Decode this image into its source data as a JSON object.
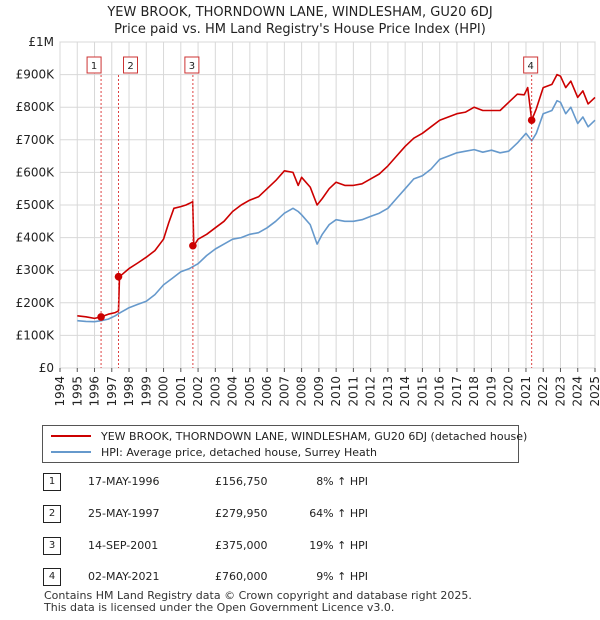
{
  "title_line1": "YEW BROOK, THORNDOWN LANE, WINDLESHAM, GU20 6DJ",
  "title_line2": "Price paid vs. HM Land Registry's House Price Index (HPI)",
  "chart_data": {
    "type": "line",
    "title": "YEW BROOK, THORNDOWN LANE, WINDLESHAM, GU20 6DJ — Price paid vs. HM Land Registry's House Price Index (HPI)",
    "xlabel": "",
    "ylabel": "",
    "xlim": [
      1994.0,
      2025.0
    ],
    "ylim": [
      0,
      1000000
    ],
    "y_ticks": [
      0,
      100000,
      200000,
      300000,
      400000,
      500000,
      600000,
      700000,
      800000,
      900000,
      1000000
    ],
    "y_tick_labels": [
      "£0",
      "£100K",
      "£200K",
      "£300K",
      "£400K",
      "£500K",
      "£600K",
      "£700K",
      "£800K",
      "£900K",
      "£1M"
    ],
    "x_ticks": [
      1994,
      1995,
      1996,
      1997,
      1998,
      1999,
      2000,
      2001,
      2002,
      2003,
      2004,
      2005,
      2006,
      2007,
      2008,
      2009,
      2010,
      2011,
      2012,
      2013,
      2014,
      2015,
      2016,
      2017,
      2018,
      2019,
      2020,
      2021,
      2022,
      2023,
      2024,
      2025
    ],
    "x_tick_labels": [
      "1994",
      "1995",
      "1996",
      "1997",
      "1998",
      "1999",
      "2000",
      "2001",
      "2002",
      "2003",
      "2004",
      "2005",
      "2006",
      "2007",
      "2008",
      "2009",
      "2010",
      "2011",
      "2012",
      "2013",
      "2014",
      "2015",
      "2016",
      "2017",
      "2018",
      "2019",
      "2020",
      "2021",
      "2022",
      "2023",
      "2024",
      "2025"
    ],
    "grid": true,
    "series": [
      {
        "name": "YEW BROOK, THORNDOWN LANE, WINDLESHAM, GU20 6DJ (detached house)",
        "color": "#cc0000",
        "x": [
          1995.0,
          1995.5,
          1996.0,
          1996.38,
          1996.8,
          1997.2,
          1997.39,
          1997.45,
          1998.0,
          1998.5,
          1999.0,
          1999.5,
          2000.0,
          2000.3,
          2000.6,
          2001.0,
          2001.3,
          2001.5,
          2001.69,
          2001.75,
          2002.0,
          2002.5,
          2003.0,
          2003.5,
          2004.0,
          2004.5,
          2005.0,
          2005.5,
          2006.0,
          2006.5,
          2007.0,
          2007.5,
          2007.8,
          2008.0,
          2008.5,
          2008.9,
          2009.2,
          2009.6,
          2010.0,
          2010.5,
          2011.0,
          2011.5,
          2012.0,
          2012.5,
          2013.0,
          2013.5,
          2014.0,
          2014.5,
          2015.0,
          2015.5,
          2016.0,
          2016.5,
          2017.0,
          2017.5,
          2018.0,
          2018.5,
          2019.0,
          2019.5,
          2020.0,
          2020.5,
          2020.9,
          2021.1,
          2021.33,
          2021.6,
          2022.0,
          2022.5,
          2022.8,
          2023.0,
          2023.3,
          2023.6,
          2024.0,
          2024.3,
          2024.6,
          2025.0
        ],
        "values": [
          160000,
          157000,
          152000,
          156750,
          165000,
          170000,
          175000,
          279950,
          305000,
          322000,
          340000,
          360000,
          395000,
          445000,
          490000,
          495000,
          500000,
          505000,
          510000,
          375000,
          395000,
          410000,
          430000,
          450000,
          480000,
          500000,
          515000,
          525000,
          550000,
          575000,
          605000,
          600000,
          560000,
          585000,
          555000,
          500000,
          520000,
          550000,
          570000,
          560000,
          560000,
          565000,
          580000,
          595000,
          620000,
          650000,
          680000,
          705000,
          720000,
          740000,
          760000,
          770000,
          780000,
          785000,
          800000,
          790000,
          790000,
          790000,
          815000,
          840000,
          838000,
          860000,
          760000,
          795000,
          860000,
          870000,
          900000,
          895000,
          860000,
          880000,
          830000,
          850000,
          810000,
          830000
        ]
      },
      {
        "name": "HPI: Average price, detached house, Surrey Heath",
        "color": "#6699cc",
        "x": [
          1995.0,
          1995.5,
          1996.0,
          1996.38,
          1996.8,
          1997.2,
          1997.5,
          1998.0,
          1998.5,
          1999.0,
          1999.5,
          2000.0,
          2000.5,
          2001.0,
          2001.5,
          2002.0,
          2002.5,
          2003.0,
          2003.5,
          2004.0,
          2004.5,
          2005.0,
          2005.5,
          2006.0,
          2006.5,
          2007.0,
          2007.5,
          2007.8,
          2008.0,
          2008.5,
          2008.9,
          2009.2,
          2009.6,
          2010.0,
          2010.5,
          2011.0,
          2011.5,
          2012.0,
          2012.5,
          2013.0,
          2013.5,
          2014.0,
          2014.5,
          2015.0,
          2015.5,
          2016.0,
          2016.5,
          2017.0,
          2017.5,
          2018.0,
          2018.5,
          2019.0,
          2019.5,
          2020.0,
          2020.5,
          2021.0,
          2021.33,
          2021.6,
          2022.0,
          2022.5,
          2022.8,
          2023.0,
          2023.3,
          2023.6,
          2024.0,
          2024.3,
          2024.6,
          2025.0
        ],
        "values": [
          145000,
          143000,
          142000,
          145000,
          150000,
          160000,
          170000,
          185000,
          195000,
          205000,
          225000,
          255000,
          275000,
          295000,
          305000,
          320000,
          345000,
          365000,
          380000,
          395000,
          400000,
          410000,
          415000,
          430000,
          450000,
          475000,
          490000,
          480000,
          470000,
          440000,
          380000,
          410000,
          440000,
          455000,
          450000,
          450000,
          455000,
          465000,
          475000,
          490000,
          520000,
          550000,
          580000,
          590000,
          610000,
          640000,
          650000,
          660000,
          665000,
          670000,
          662000,
          668000,
          660000,
          665000,
          690000,
          720000,
          697000,
          720000,
          780000,
          790000,
          820000,
          815000,
          780000,
          800000,
          750000,
          770000,
          740000,
          760000
        ]
      }
    ],
    "transactions": [
      {
        "label": "1",
        "x": 1996.38,
        "value": 156750
      },
      {
        "label": "2",
        "x": 1997.39,
        "value": 279950
      },
      {
        "label": "3",
        "x": 2001.7,
        "value": 375000
      },
      {
        "label": "4",
        "x": 2021.33,
        "value": 760000
      }
    ],
    "legend_position": "below"
  },
  "legend": {
    "property": "YEW BROOK, THORNDOWN LANE, WINDLESHAM, GU20 6DJ (detached house)",
    "hpi": "HPI: Average price, detached house, Surrey Heath",
    "property_color": "#cc0000",
    "hpi_color": "#6699cc"
  },
  "table": [
    {
      "num": "1",
      "date": "17-MAY-1996",
      "price": "£156,750",
      "hpi": "8% ↑ HPI"
    },
    {
      "num": "2",
      "date": "25-MAY-1997",
      "price": "£279,950",
      "hpi": "64% ↑ HPI"
    },
    {
      "num": "3",
      "date": "14-SEP-2001",
      "price": "£375,000",
      "hpi": "19% ↑ HPI"
    },
    {
      "num": "4",
      "date": "02-MAY-2021",
      "price": "£760,000",
      "hpi": "9% ↑ HPI"
    }
  ],
  "footer": {
    "line1": "Contains HM Land Registry data © Crown copyright and database right 2025.",
    "line2": "This data is licensed under the Open Government Licence v3.0."
  }
}
